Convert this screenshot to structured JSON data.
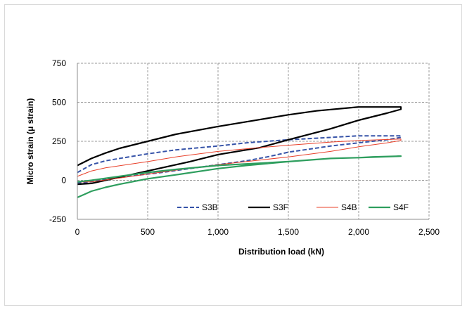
{
  "chart_data": {
    "type": "line",
    "title": "",
    "xlabel": "Distribution load (kN)",
    "ylabel": "Micro strain (μ strain)",
    "xlim": [
      0,
      2500
    ],
    "ylim": [
      -250,
      750
    ],
    "x_ticks": [
      0,
      500,
      1000,
      1500,
      2000,
      2500
    ],
    "x_tick_labels": [
      "0",
      "500",
      "1,000",
      "1,500",
      "2,000",
      "2,500"
    ],
    "y_ticks": [
      -250,
      0,
      250,
      500,
      750
    ],
    "y_tick_labels": [
      "-250",
      "0",
      "250",
      "500",
      "750"
    ],
    "grid": true,
    "grid_style": "dashed",
    "legend_position": "bottom-right inside plot",
    "series": [
      {
        "name": "S3B",
        "color": "#3653a8",
        "dash": "dashed",
        "width": 2,
        "x": [
          0,
          100,
          200,
          300,
          500,
          700,
          1000,
          1200,
          1500,
          1700,
          2000,
          2300,
          2300,
          2200,
          2000,
          1800,
          1500,
          1400,
          1350,
          1200,
          1000,
          800,
          600,
          400,
          200,
          50,
          0
        ],
        "y": [
          50,
          100,
          125,
          140,
          170,
          195,
          220,
          240,
          260,
          270,
          285,
          285,
          275,
          260,
          240,
          220,
          180,
          160,
          150,
          125,
          100,
          75,
          50,
          30,
          5,
          -15,
          -15
        ]
      },
      {
        "name": "S3F",
        "color": "#000000",
        "dash": "solid",
        "width": 2.2,
        "x": [
          0,
          100,
          200,
          300,
          500,
          700,
          1000,
          1200,
          1500,
          1700,
          2000,
          2300,
          2300,
          2200,
          2000,
          1800,
          1500,
          1300,
          1000,
          800,
          500,
          300,
          100,
          0
        ],
        "y": [
          95,
          140,
          175,
          205,
          250,
          295,
          345,
          375,
          420,
          445,
          470,
          470,
          455,
          430,
          385,
          330,
          260,
          210,
          165,
          120,
          60,
          20,
          -20,
          -25
        ]
      },
      {
        "name": "S4B",
        "color": "#e8402a",
        "dash": "solid",
        "width": 1,
        "x": [
          0,
          100,
          200,
          500,
          700,
          1000,
          1300,
          1500,
          1800,
          2000,
          2300,
          2300,
          2200,
          2000,
          1800,
          1500,
          1200,
          1000,
          700,
          500,
          300,
          100,
          0
        ],
        "y": [
          25,
          60,
          80,
          120,
          150,
          185,
          210,
          225,
          245,
          255,
          265,
          255,
          240,
          215,
          185,
          150,
          120,
          100,
          65,
          40,
          15,
          -10,
          -10
        ]
      },
      {
        "name": "S4F",
        "color": "#2e9e5e",
        "dash": "solid",
        "width": 2.2,
        "x": [
          0,
          50,
          100,
          200,
          300,
          500,
          700,
          1000,
          1200,
          1500,
          1800,
          2000,
          2300,
          2300,
          2100,
          2000,
          1800,
          1500,
          1200,
          1000,
          700,
          500,
          300,
          100,
          0
        ],
        "y": [
          -110,
          -90,
          -70,
          -45,
          -25,
          10,
          35,
          75,
          95,
          120,
          140,
          145,
          155,
          155,
          150,
          145,
          140,
          120,
          105,
          95,
          70,
          50,
          25,
          0,
          -10
        ]
      }
    ]
  }
}
